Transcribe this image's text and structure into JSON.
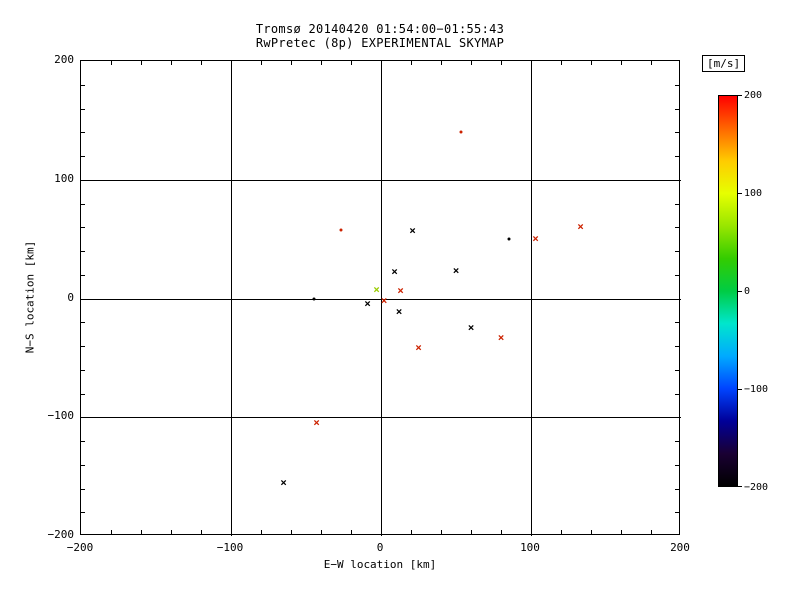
{
  "title": {
    "line1": "Tromsø 20140420 01:54:00−01:55:43",
    "line2": "RwPretec (8p) EXPERIMENTAL SKYMAP"
  },
  "chart_data": {
    "type": "scatter",
    "title": "Tromsø 20140420 01:54:00−01:55:43",
    "subtitle": "RwPretec (8p) EXPERIMENTAL SKYMAP",
    "xlabel": "E−W location [km]",
    "ylabel": "N−S location [km]",
    "xlim": [
      -200,
      200
    ],
    "ylim": [
      -200,
      200
    ],
    "xticks": [
      -200,
      -100,
      0,
      100,
      200
    ],
    "yticks": [
      -200,
      -100,
      0,
      100,
      200
    ],
    "minor_tick_km": 20,
    "grid": true,
    "grid_lines_at": [
      -100,
      0,
      100
    ],
    "background": "#ffffff",
    "axis_color": "#000000",
    "colorbar": {
      "label": "[m/s]",
      "min": -200,
      "max": 200,
      "ticks": [
        200,
        100,
        0,
        -100,
        -200
      ],
      "colormap_bottom_to_top": [
        "#000000",
        "#1a0033",
        "#000099",
        "#0044ff",
        "#00aaff",
        "#00e6cc",
        "#00cc44",
        "#33cc00",
        "#99e600",
        "#e6ff00",
        "#ffcc00",
        "#ff6600",
        "#ff0000"
      ]
    },
    "points": [
      {
        "x": 53,
        "y": 140,
        "v": 200,
        "color": "#cc2200",
        "marker": "dot"
      },
      {
        "x": -27,
        "y": 58,
        "v": 200,
        "color": "#cc2200",
        "marker": "dot"
      },
      {
        "x": 21,
        "y": 57,
        "v": -200,
        "color": "#000000",
        "marker": "x"
      },
      {
        "x": 85,
        "y": 50,
        "v": -200,
        "color": "#000000",
        "marker": "dot"
      },
      {
        "x": 103,
        "y": 50,
        "v": 200,
        "color": "#cc2200",
        "marker": "x"
      },
      {
        "x": 133,
        "y": 60,
        "v": 200,
        "color": "#cc2200",
        "marker": "x"
      },
      {
        "x": 9,
        "y": 22,
        "v": -200,
        "color": "#000000",
        "marker": "x"
      },
      {
        "x": 50,
        "y": 23,
        "v": -200,
        "color": "#000000",
        "marker": "x"
      },
      {
        "x": -3,
        "y": 7,
        "v": 90,
        "color": "#99cc00",
        "marker": "x"
      },
      {
        "x": 13,
        "y": 6,
        "v": 200,
        "color": "#cc2200",
        "marker": "x"
      },
      {
        "x": -45,
        "y": 0,
        "v": -200,
        "color": "#000000",
        "marker": "dot"
      },
      {
        "x": -9,
        "y": -5,
        "v": -200,
        "color": "#000000",
        "marker": "x"
      },
      {
        "x": 2,
        "y": -2,
        "v": 200,
        "color": "#cc2200",
        "marker": "x"
      },
      {
        "x": 12,
        "y": -11,
        "v": -200,
        "color": "#000000",
        "marker": "x"
      },
      {
        "x": 60,
        "y": -25,
        "v": -200,
        "color": "#000000",
        "marker": "x"
      },
      {
        "x": 80,
        "y": -33,
        "v": 200,
        "color": "#cc2200",
        "marker": "x"
      },
      {
        "x": 25,
        "y": -42,
        "v": 200,
        "color": "#cc2200",
        "marker": "x"
      },
      {
        "x": -43,
        "y": -105,
        "v": 200,
        "color": "#cc2200",
        "marker": "x"
      },
      {
        "x": -65,
        "y": -155,
        "v": -200,
        "color": "#000000",
        "marker": "x"
      }
    ]
  }
}
